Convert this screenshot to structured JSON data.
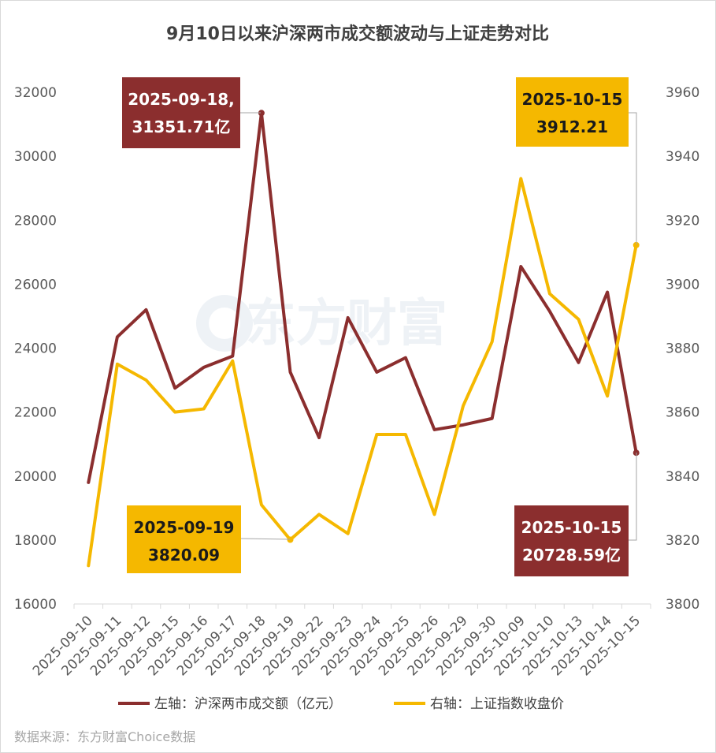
{
  "chart_data": {
    "type": "line",
    "title": "9月10日以来沪深两市成交额波动与上证走势对比",
    "categories": [
      "2025-09-10",
      "2025-09-11",
      "2025-09-12",
      "2025-09-15",
      "2025-09-16",
      "2025-09-17",
      "2025-09-18",
      "2025-09-19",
      "2025-09-22",
      "2025-09-23",
      "2025-09-24",
      "2025-09-25",
      "2025-09-26",
      "2025-09-29",
      "2025-09-30",
      "2025-10-09",
      "2025-10-10",
      "2025-10-13",
      "2025-10-14",
      "2025-10-15"
    ],
    "left_axis": {
      "ylim": [
        16000,
        32000
      ],
      "ticks": [
        "16000",
        "18000",
        "20000",
        "22000",
        "24000",
        "26000",
        "28000",
        "30000",
        "32000"
      ]
    },
    "right_axis": {
      "ylim": [
        3800,
        3960
      ],
      "ticks": [
        "3800",
        "3820",
        "3840",
        "3860",
        "3880",
        "3900",
        "3920",
        "3940",
        "3960"
      ]
    },
    "series": [
      {
        "name": "左轴：沪深两市成交额（亿元）",
        "axis": "left",
        "color": "#8b2e2e",
        "values": [
          19800,
          24350,
          25200,
          22750,
          23400,
          23750,
          31351.71,
          23250,
          21200,
          24950,
          23250,
          23700,
          21450,
          21600,
          21800,
          26550,
          25150,
          23550,
          25750,
          20728.59
        ]
      },
      {
        "name": "右轴：上证指数收盘价",
        "axis": "right",
        "color": "#f5b800",
        "values": [
          3812,
          3875,
          3870,
          3860,
          3861,
          3876,
          3831,
          3820.09,
          3828,
          3822,
          3853,
          3853,
          3828,
          3862,
          3882,
          3933,
          3897,
          3889,
          3865,
          3912.21
        ]
      }
    ],
    "grid": false,
    "legend_position": "bottom",
    "annotations": [
      {
        "series": 0,
        "index": 6,
        "line1": "2025-09-18,",
        "line2": "31351.71亿",
        "bg": "#8b2e2e",
        "fg": "#ffffff"
      },
      {
        "series": 1,
        "index": 19,
        "line1": "2025-10-15",
        "line2": "3912.21",
        "bg": "#f5b800",
        "fg": "#1a1a1a"
      },
      {
        "series": 1,
        "index": 7,
        "line1": "2025-09-19",
        "line2": "3820.09",
        "bg": "#f5b800",
        "fg": "#1a1a1a"
      },
      {
        "series": 0,
        "index": 19,
        "line1": "2025-10-15",
        "line2": "20728.59亿",
        "bg": "#8b2e2e",
        "fg": "#ffffff"
      }
    ]
  },
  "watermark": "东方财富",
  "source": "数据来源：东方财富Choice数据"
}
